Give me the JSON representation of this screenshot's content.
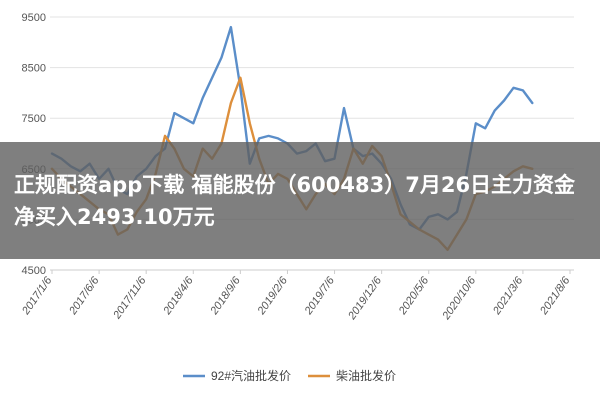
{
  "banner": {
    "text": "正规配资app下载 福能股份（600483）7月26日主力资金净买入2493.10万元"
  },
  "colors": {
    "series_92": "#5b8ec9",
    "series_diesel": "#dd8f3c",
    "grid": "#e3e3e3",
    "banner_bg": "rgba(95,95,95,0.80)"
  },
  "chart_data": {
    "type": "line",
    "title": "",
    "xlabel": "",
    "ylabel": "",
    "ylim": [
      4500,
      9500
    ],
    "yticks": [
      "9500",
      "8500",
      "7500",
      "6500",
      "5500",
      "4500"
    ],
    "yticks_values": [
      9500,
      8500,
      7500,
      6500,
      5500,
      4500
    ],
    "x_tick_labels": [
      "2017/1/6",
      "2017/6/6",
      "2017/11/6",
      "2018/4/6",
      "2018/9/6",
      "2019/2/6",
      "2019/7/6",
      "2019/12/6",
      "2020/5/6",
      "2020/10/6",
      "2021/3/6",
      "2021/8/6"
    ],
    "x_months_per_tick": 5,
    "grid": true,
    "legend_position": "bottom",
    "series": [
      {
        "name": "92#汽油批发价",
        "color": "#5b8ec9",
        "points": [
          [
            0,
            6800
          ],
          [
            1,
            6700
          ],
          [
            2,
            6550
          ],
          [
            3,
            6450
          ],
          [
            4,
            6600
          ],
          [
            5,
            6300
          ],
          [
            6,
            6500
          ],
          [
            7,
            6100
          ],
          [
            8,
            6000
          ],
          [
            9,
            6350
          ],
          [
            10,
            6500
          ],
          [
            11,
            6750
          ],
          [
            12,
            6900
          ],
          [
            13,
            7600
          ],
          [
            14,
            7500
          ],
          [
            15,
            7400
          ],
          [
            16,
            7900
          ],
          [
            17,
            8300
          ],
          [
            18,
            8700
          ],
          [
            19,
            9300
          ],
          [
            20,
            8100
          ],
          [
            21,
            6600
          ],
          [
            22,
            7100
          ],
          [
            23,
            7150
          ],
          [
            24,
            7100
          ],
          [
            25,
            7000
          ],
          [
            26,
            6800
          ],
          [
            27,
            6850
          ],
          [
            28,
            7000
          ],
          [
            29,
            6650
          ],
          [
            30,
            6700
          ],
          [
            31,
            7700
          ],
          [
            32,
            6900
          ],
          [
            33,
            6750
          ],
          [
            34,
            6800
          ],
          [
            35,
            6600
          ],
          [
            36,
            6300
          ],
          [
            37,
            5800
          ],
          [
            38,
            5400
          ],
          [
            39,
            5300
          ],
          [
            40,
            5550
          ],
          [
            41,
            5600
          ],
          [
            42,
            5500
          ],
          [
            43,
            5650
          ],
          [
            44,
            6400
          ],
          [
            45,
            7400
          ],
          [
            46,
            7300
          ],
          [
            47,
            7650
          ],
          [
            48,
            7850
          ],
          [
            49,
            8100
          ],
          [
            50,
            8050
          ],
          [
            51,
            7800
          ]
        ]
      },
      {
        "name": "柴油批发价",
        "color": "#dd8f3c",
        "points": [
          [
            0,
            6500
          ],
          [
            1,
            6300
          ],
          [
            2,
            6150
          ],
          [
            3,
            6000
          ],
          [
            4,
            5850
          ],
          [
            5,
            5700
          ],
          [
            6,
            5600
          ],
          [
            7,
            5200
          ],
          [
            8,
            5300
          ],
          [
            9,
            5650
          ],
          [
            10,
            5900
          ],
          [
            11,
            6400
          ],
          [
            12,
            7150
          ],
          [
            13,
            6900
          ],
          [
            14,
            6500
          ],
          [
            15,
            6350
          ],
          [
            16,
            6900
          ],
          [
            17,
            6700
          ],
          [
            18,
            7000
          ],
          [
            19,
            7800
          ],
          [
            20,
            8300
          ],
          [
            21,
            7400
          ],
          [
            22,
            6700
          ],
          [
            23,
            6200
          ],
          [
            24,
            6400
          ],
          [
            25,
            6300
          ],
          [
            26,
            6000
          ],
          [
            27,
            5700
          ],
          [
            28,
            6000
          ],
          [
            29,
            6200
          ],
          [
            30,
            6000
          ],
          [
            31,
            6300
          ],
          [
            32,
            6900
          ],
          [
            33,
            6600
          ],
          [
            34,
            6950
          ],
          [
            35,
            6750
          ],
          [
            36,
            6200
          ],
          [
            37,
            5600
          ],
          [
            38,
            5450
          ],
          [
            39,
            5300
          ],
          [
            40,
            5200
          ],
          [
            41,
            5100
          ],
          [
            42,
            4900
          ],
          [
            43,
            5200
          ],
          [
            44,
            5500
          ],
          [
            45,
            6000
          ],
          [
            46,
            6050
          ],
          [
            47,
            6150
          ],
          [
            48,
            6300
          ],
          [
            49,
            6450
          ],
          [
            50,
            6550
          ],
          [
            51,
            6500
          ]
        ]
      }
    ]
  }
}
